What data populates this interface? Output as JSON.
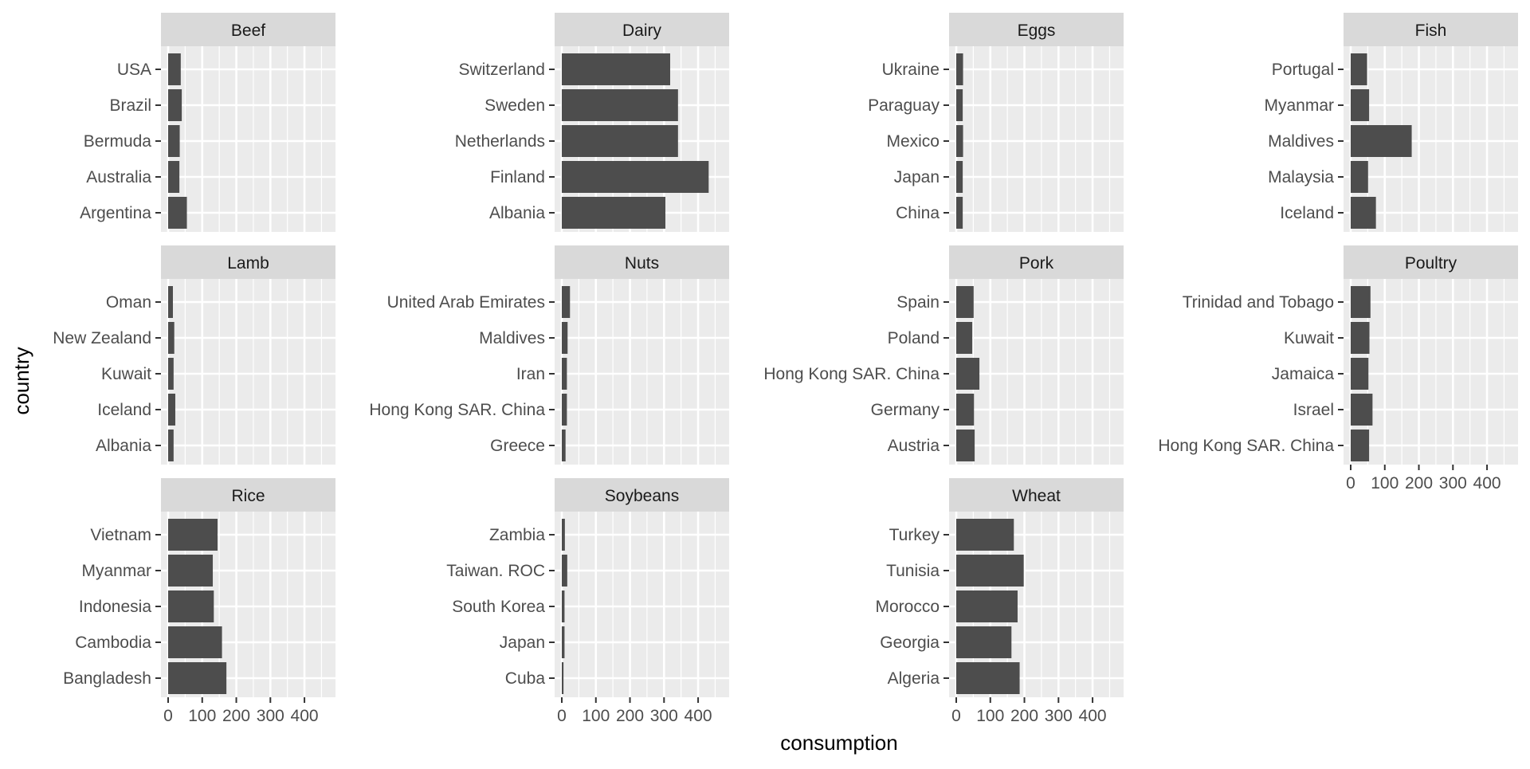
{
  "chart_data": {
    "type": "bar",
    "orientation": "horizontal",
    "facet_layout": "4 columns x 3 rows",
    "xlabel": "consumption",
    "ylabel": "country",
    "xlim": [
      0,
      450
    ],
    "xticks": [
      0,
      100,
      200,
      300,
      400
    ],
    "grid": true,
    "panel_background": "#ebebeb",
    "strip_background": "#d9d9d9",
    "bar_color": "#4d4d4d",
    "text_color": "#4d4d4d",
    "facets": [
      {
        "name": "Beef",
        "categories": [
          "USA",
          "Brazil",
          "Bermuda",
          "Australia",
          "Argentina"
        ],
        "values": [
          37,
          40,
          34,
          33,
          55
        ]
      },
      {
        "name": "Dairy",
        "categories": [
          "Switzerland",
          "Sweden",
          "Netherlands",
          "Finland",
          "Albania"
        ],
        "values": [
          318,
          341,
          341,
          431,
          304
        ]
      },
      {
        "name": "Eggs",
        "categories": [
          "Ukraine",
          "Paraguay",
          "Mexico",
          "Japan",
          "China"
        ],
        "values": [
          20,
          19,
          20,
          19,
          19
        ]
      },
      {
        "name": "Fish",
        "categories": [
          "Portugal",
          "Myanmar",
          "Maldives",
          "Malaysia",
          "Iceland"
        ],
        "values": [
          48,
          54,
          179,
          51,
          74
        ]
      },
      {
        "name": "Lamb",
        "categories": [
          "Oman",
          "New Zealand",
          "Kuwait",
          "Iceland",
          "Albania"
        ],
        "values": [
          14,
          18,
          16,
          21,
          16
        ]
      },
      {
        "name": "Nuts",
        "categories": [
          "United Arab Emirates",
          "Maldives",
          "Iran",
          "Hong Kong SAR. China",
          "Greece"
        ],
        "values": [
          24,
          17,
          15,
          15,
          11
        ]
      },
      {
        "name": "Pork",
        "categories": [
          "Spain",
          "Poland",
          "Hong Kong SAR. China",
          "Germany",
          "Austria"
        ],
        "values": [
          51,
          47,
          68,
          52,
          54
        ]
      },
      {
        "name": "Poultry",
        "categories": [
          "Trinidad and Tobago",
          "Kuwait",
          "Jamaica",
          "Israel",
          "Hong Kong SAR. China"
        ],
        "values": [
          58,
          55,
          52,
          64,
          54
        ]
      },
      {
        "name": "Rice",
        "categories": [
          "Vietnam",
          "Myanmar",
          "Indonesia",
          "Cambodia",
          "Bangladesh"
        ],
        "values": [
          145,
          131,
          134,
          158,
          171
        ]
      },
      {
        "name": "Soybeans",
        "categories": [
          "Zambia",
          "Taiwan. ROC",
          "South Korea",
          "Japan",
          "Cuba"
        ],
        "values": [
          9,
          16,
          8,
          8,
          5
        ]
      },
      {
        "name": "Wheat",
        "categories": [
          "Turkey",
          "Tunisia",
          "Morocco",
          "Georgia",
          "Algeria"
        ],
        "values": [
          169,
          198,
          180,
          162,
          186
        ]
      }
    ]
  }
}
